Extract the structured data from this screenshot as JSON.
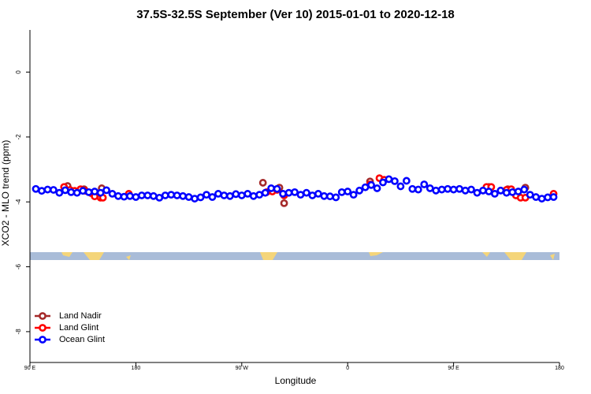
{
  "chart_data": {
    "type": "scatter",
    "title": "37.5S-32.5S September (Ver 10)   2015-01-01 to 2020-12-18",
    "x_label": "Longitude",
    "y_label": "XCO2 - MLO trend (ppm)",
    "xlim": [
      90,
      540
    ],
    "ylim": [
      -8.95,
      1.3
    ],
    "xticks": [
      {
        "value": 90,
        "label": "90 E"
      },
      {
        "value": 180,
        "label": "180"
      },
      {
        "value": 270,
        "label": "90 W"
      },
      {
        "value": 360,
        "label": "0"
      },
      {
        "value": 450,
        "label": "90 E"
      },
      {
        "value": 540,
        "label": "180"
      }
    ],
    "yticks": [
      0,
      -2,
      -4,
      -6,
      -8
    ],
    "legend": "bottom-left",
    "series": [
      {
        "name": "Land Nadir",
        "color": "#a52a2a",
        "x": [
          122,
          136,
          151,
          288,
          302,
          306,
          379,
          480,
          496,
          511
        ],
        "values": [
          -3.51,
          -3.61,
          -3.58,
          -3.41,
          -3.56,
          -4.04,
          -3.37,
          -3.54,
          -3.61,
          -3.56
        ]
      },
      {
        "name": "Land Glint",
        "color": "#ff0000",
        "x": [
          119,
          124,
          128,
          133,
          137,
          142,
          145,
          150,
          152,
          174,
          291,
          296,
          300,
          306,
          379,
          387,
          391,
          478,
          482,
          495,
          499,
          503,
          507,
          511,
          535
        ],
        "values": [
          -3.54,
          -3.63,
          -3.66,
          -3.61,
          -3.66,
          -3.73,
          -3.83,
          -3.87,
          -3.87,
          -3.75,
          -3.7,
          -3.68,
          -3.63,
          -3.8,
          -3.46,
          -3.27,
          -3.32,
          -3.54,
          -3.54,
          -3.63,
          -3.61,
          -3.8,
          -3.87,
          -3.87,
          -3.75
        ]
      },
      {
        "name": "Ocean Glint",
        "color": "#0000ff",
        "x": [
          95,
          100,
          105,
          110,
          115,
          120,
          125,
          130,
          135,
          140,
          145,
          150,
          155,
          160,
          165,
          170,
          175,
          180,
          185,
          190,
          195,
          200,
          205,
          210,
          215,
          220,
          225,
          230,
          235,
          240,
          245,
          250,
          255,
          260,
          265,
          270,
          275,
          280,
          285,
          290,
          295,
          300,
          305,
          310,
          315,
          320,
          325,
          330,
          335,
          340,
          345,
          350,
          355,
          360,
          365,
          370,
          375,
          380,
          385,
          390,
          395,
          400,
          405,
          410,
          415,
          420,
          425,
          430,
          435,
          440,
          445,
          450,
          455,
          460,
          465,
          470,
          475,
          480,
          485,
          490,
          495,
          500,
          505,
          510,
          515,
          520,
          525,
          530,
          535
        ],
        "values": [
          -3.6,
          -3.66,
          -3.62,
          -3.63,
          -3.72,
          -3.64,
          -3.7,
          -3.72,
          -3.66,
          -3.7,
          -3.68,
          -3.72,
          -3.64,
          -3.75,
          -3.82,
          -3.84,
          -3.82,
          -3.85,
          -3.8,
          -3.8,
          -3.82,
          -3.87,
          -3.8,
          -3.78,
          -3.8,
          -3.82,
          -3.85,
          -3.9,
          -3.86,
          -3.78,
          -3.85,
          -3.75,
          -3.8,
          -3.82,
          -3.76,
          -3.8,
          -3.75,
          -3.82,
          -3.78,
          -3.72,
          -3.58,
          -3.6,
          -3.75,
          -3.72,
          -3.7,
          -3.78,
          -3.72,
          -3.8,
          -3.75,
          -3.82,
          -3.83,
          -3.86,
          -3.7,
          -3.68,
          -3.78,
          -3.65,
          -3.55,
          -3.48,
          -3.58,
          -3.4,
          -3.3,
          -3.36,
          -3.52,
          -3.35,
          -3.6,
          -3.62,
          -3.46,
          -3.58,
          -3.65,
          -3.62,
          -3.6,
          -3.62,
          -3.6,
          -3.65,
          -3.62,
          -3.72,
          -3.65,
          -3.68,
          -3.75,
          -3.65,
          -3.72,
          -3.7,
          -3.68,
          -3.62,
          -3.78,
          -3.85,
          -3.9,
          -3.86,
          -3.85
        ]
      }
    ]
  }
}
